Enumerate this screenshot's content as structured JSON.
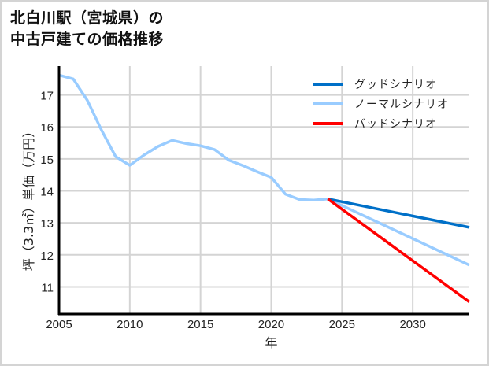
{
  "title": {
    "line1": "北白川駅（宮城県）の",
    "line2": "中古戸建ての価格推移"
  },
  "chart_data": {
    "type": "line",
    "title": "北白川駅（宮城県）の中古戸建ての価格推移",
    "xlabel": "年",
    "ylabel": "坪（3.3㎡）単価（万円）",
    "xlim": [
      2005,
      2034
    ],
    "ylim": [
      10.15,
      17.9
    ],
    "xticks": [
      2005,
      2010,
      2015,
      2020,
      2025,
      2030
    ],
    "yticks": [
      11,
      12,
      13,
      14,
      15,
      16,
      17
    ],
    "grid": true,
    "legend_position": "upper right",
    "series": [
      {
        "name": "ノーマルシナリオ",
        "color": "#99ccff",
        "x": [
          2005,
          2006,
          2007,
          2008,
          2009,
          2010,
          2011,
          2012,
          2013,
          2014,
          2015,
          2016,
          2017,
          2018,
          2019,
          2020,
          2021,
          2022,
          2023,
          2024,
          2034
        ],
        "values": [
          17.62,
          17.5,
          16.83,
          15.9,
          15.07,
          14.8,
          15.12,
          15.39,
          15.58,
          15.48,
          15.41,
          15.29,
          14.96,
          14.79,
          14.6,
          14.42,
          13.9,
          13.73,
          13.71,
          13.75,
          11.68
        ]
      },
      {
        "name": "グッドシナリオ",
        "color": "#0070c8",
        "x": [
          2024,
          2034
        ],
        "values": [
          13.75,
          12.86
        ]
      },
      {
        "name": "バッドシナリオ",
        "color": "#ff0000",
        "x": [
          2024,
          2034
        ],
        "values": [
          13.75,
          10.53
        ]
      }
    ]
  },
  "legend": [
    {
      "label": "グッドシナリオ",
      "color": "#0070c8"
    },
    {
      "label": "ノーマルシナリオ",
      "color": "#99ccff"
    },
    {
      "label": "バッドシナリオ",
      "color": "#ff0000"
    }
  ]
}
